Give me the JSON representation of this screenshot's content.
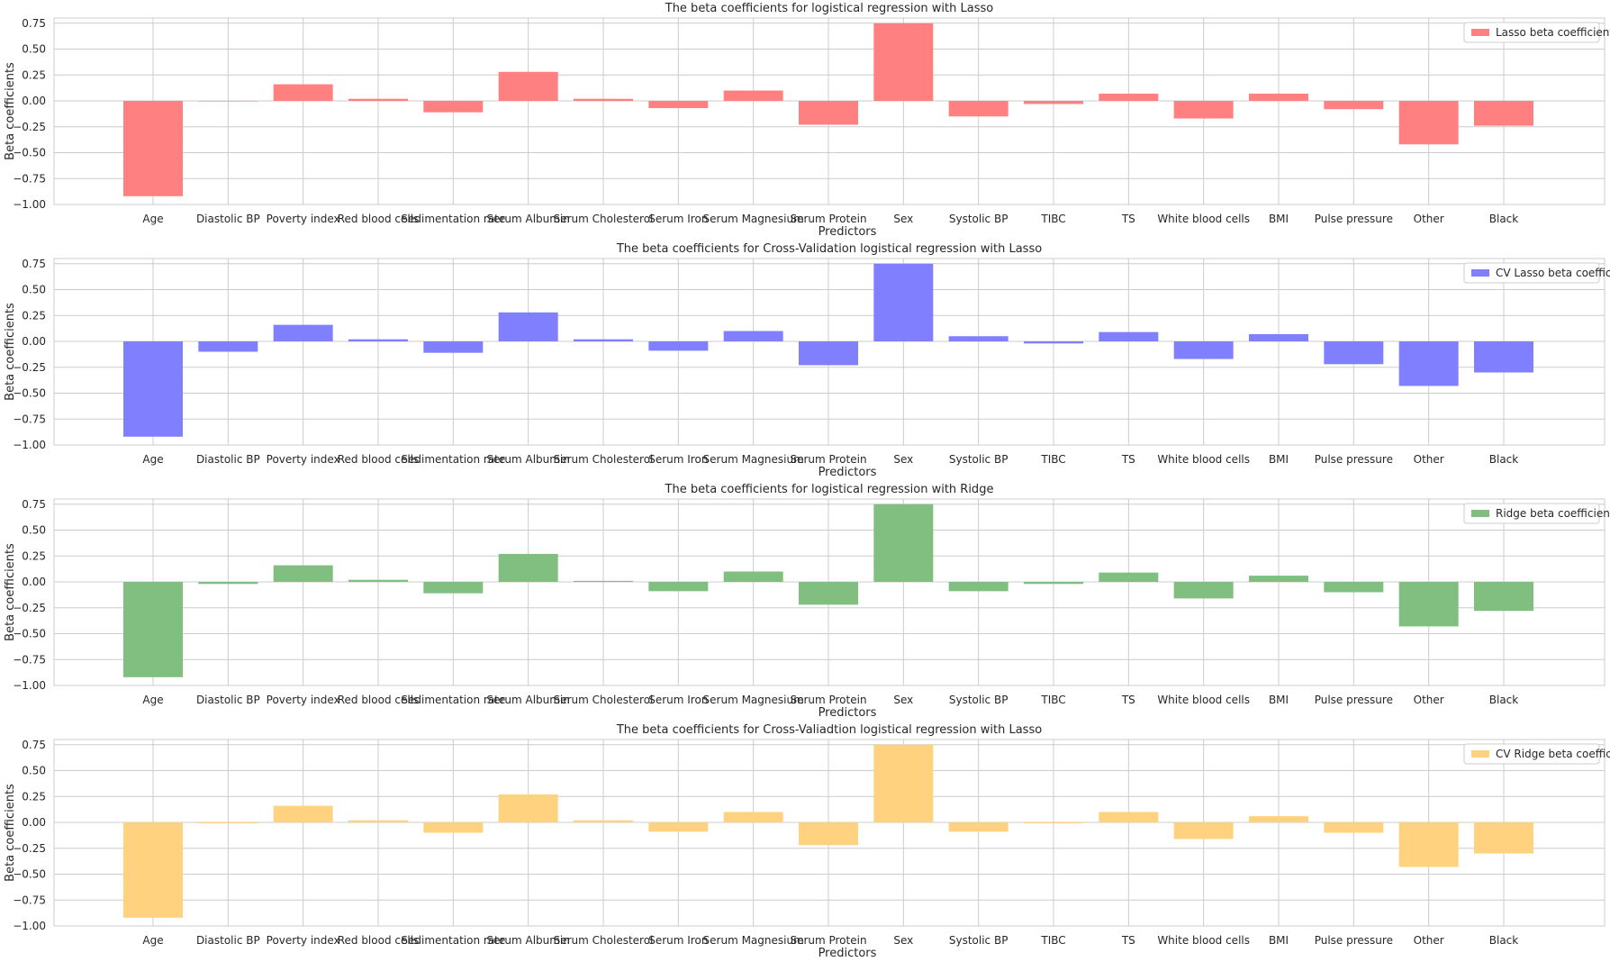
{
  "chart_data": [
    {
      "type": "bar",
      "title": "The beta coefficients for logistical regression with Lasso",
      "xlabel": "Predictors",
      "ylabel": "Beta coefficients",
      "ylim": [
        -1.0,
        0.8
      ],
      "yticks": [
        "0.75",
        "0.50",
        "0.25",
        "0.00",
        "−0.25",
        "−0.50",
        "−0.75",
        "−1.00"
      ],
      "grid": true,
      "legend": "top-right",
      "color": "#ff8080",
      "categories": [
        "Age",
        "Diastolic BP",
        "Poverty index",
        "Red blood cells",
        "Sedimentation rate",
        "Serum Albumin",
        "Serum Cholesterol",
        "Serum Iron",
        "Serum Magnesium",
        "Serum Protein",
        "Sex",
        "Systolic BP",
        "TIBC",
        "TS",
        "White blood cells",
        "BMI",
        "Pulse pressure",
        "Other",
        "Black"
      ],
      "series": [
        {
          "name": "Lasso beta coefficient",
          "values": [
            -0.92,
            0.0,
            0.16,
            0.02,
            -0.11,
            0.28,
            0.02,
            -0.07,
            0.1,
            -0.23,
            0.75,
            -0.15,
            -0.03,
            0.07,
            -0.17,
            0.07,
            -0.08,
            -0.42,
            -0.24
          ]
        }
      ]
    },
    {
      "type": "bar",
      "title": "The beta coefficients for Cross-Validation logistical regression with Lasso",
      "xlabel": "Predictors",
      "ylabel": "Beta coefficients",
      "ylim": [
        -1.0,
        0.8
      ],
      "yticks": [
        "0.75",
        "0.50",
        "0.25",
        "0.00",
        "−0.25",
        "−0.50",
        "−0.75",
        "−1.00"
      ],
      "grid": true,
      "legend": "top-right",
      "color": "#8080ff",
      "categories": [
        "Age",
        "Diastolic BP",
        "Poverty index",
        "Red blood cells",
        "Sedimentation rate",
        "Serum Albumin",
        "Serum Cholesterol",
        "Serum Iron",
        "Serum Magnesium",
        "Serum Protein",
        "Sex",
        "Systolic BP",
        "TIBC",
        "TS",
        "White blood cells",
        "BMI",
        "Pulse pressure",
        "Other",
        "Black"
      ],
      "series": [
        {
          "name": "CV Lasso beta coefficient",
          "values": [
            -0.92,
            -0.1,
            0.16,
            0.02,
            -0.11,
            0.28,
            0.02,
            -0.09,
            0.1,
            -0.23,
            0.75,
            0.05,
            -0.02,
            0.09,
            -0.17,
            0.07,
            -0.22,
            -0.43,
            -0.3
          ]
        }
      ]
    },
    {
      "type": "bar",
      "title": "The beta coefficients for logistical regression with Ridge",
      "xlabel": "Predictors",
      "ylabel": "Beta coefficients",
      "ylim": [
        -1.0,
        0.8
      ],
      "yticks": [
        "0.75",
        "0.50",
        "0.25",
        "0.00",
        "−0.25",
        "−0.50",
        "−0.75",
        "−1.00"
      ],
      "grid": true,
      "legend": "top-right",
      "color": "#80bf80",
      "categories": [
        "Age",
        "Diastolic BP",
        "Poverty index",
        "Red blood cells",
        "Sedimentation rate",
        "Serum Albumin",
        "Serum Cholesterol",
        "Serum Iron",
        "Serum Magnesium",
        "Serum Protein",
        "Sex",
        "Systolic BP",
        "TIBC",
        "TS",
        "White blood cells",
        "BMI",
        "Pulse pressure",
        "Other",
        "Black"
      ],
      "series": [
        {
          "name": "Ridge beta coefficient",
          "values": [
            -0.92,
            -0.02,
            0.16,
            0.02,
            -0.11,
            0.27,
            0.01,
            -0.09,
            0.1,
            -0.22,
            0.75,
            -0.09,
            -0.02,
            0.09,
            -0.16,
            0.06,
            -0.1,
            -0.43,
            -0.28
          ]
        }
      ]
    },
    {
      "type": "bar",
      "title": "The beta coefficients for Cross-Valiadtion logistical regression with Lasso",
      "xlabel": "Predictors",
      "ylabel": "Beta coefficients",
      "ylim": [
        -1.0,
        0.8
      ],
      "yticks": [
        "0.75",
        "0.50",
        "0.25",
        "0.00",
        "−0.25",
        "−0.50",
        "−0.75",
        "−1.00"
      ],
      "grid": true,
      "legend": "top-right",
      "color": "#ffd280",
      "categories": [
        "Age",
        "Diastolic BP",
        "Poverty index",
        "Red blood cells",
        "Sedimentation rate",
        "Serum Albumin",
        "Serum Cholesterol",
        "Serum Iron",
        "Serum Magnesium",
        "Serum Protein",
        "Sex",
        "Systolic BP",
        "TIBC",
        "TS",
        "White blood cells",
        "BMI",
        "Pulse pressure",
        "Other",
        "Black"
      ],
      "series": [
        {
          "name": "CV Ridge beta coefficient",
          "values": [
            -0.92,
            -0.01,
            0.16,
            0.02,
            -0.1,
            0.27,
            0.02,
            -0.09,
            0.1,
            -0.22,
            0.75,
            -0.09,
            -0.01,
            0.1,
            -0.16,
            0.06,
            -0.1,
            -0.43,
            -0.3
          ]
        }
      ]
    }
  ]
}
